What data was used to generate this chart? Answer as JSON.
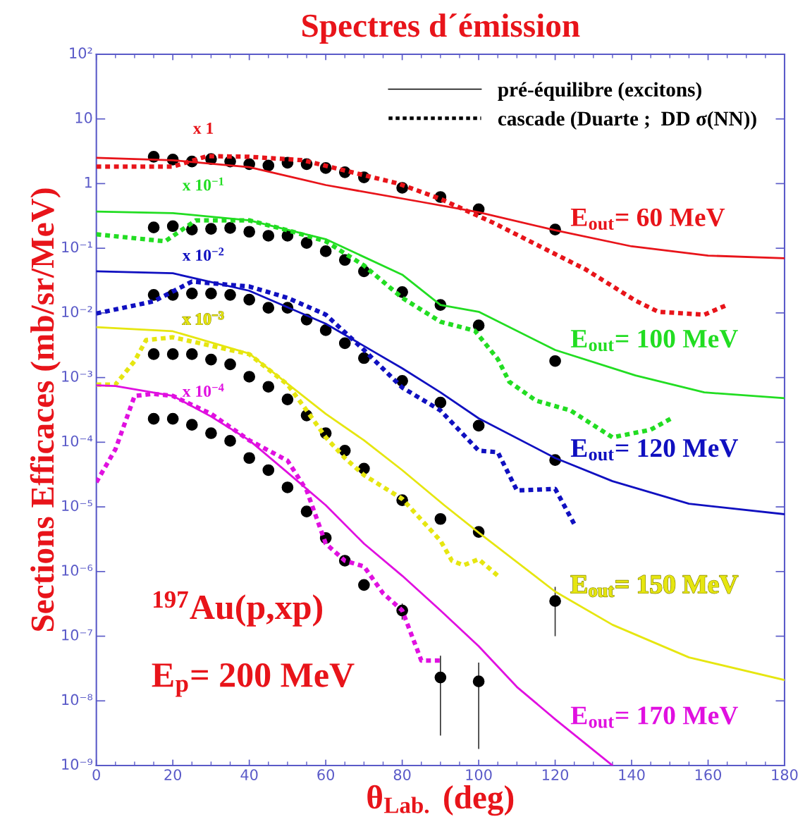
{
  "chart_data": {
    "type": "line",
    "title": "Spectres d´émission",
    "xlabel": "θ$_{Lab.}$ (deg)",
    "ylabel": "Sections Efficaces (mb/sr/MeV)",
    "xlim": [
      0,
      180
    ],
    "xticks": [
      0,
      20,
      40,
      60,
      80,
      100,
      120,
      140,
      160,
      180
    ],
    "ylim": [
      1e-09,
      100
    ],
    "yticks": [
      {
        "value": 100,
        "label": "10²"
      },
      10,
      1,
      {
        "value": 0.1,
        "label": "10⁻¹"
      },
      {
        "value": 0.01,
        "label": "10⁻²"
      },
      {
        "value": 0.001,
        "label": "10⁻³"
      },
      {
        "value": 0.0001,
        "label": "10⁻⁴"
      },
      {
        "value": 1e-05,
        "label": "10⁻⁵"
      },
      {
        "value": 1e-06,
        "label": "10⁻⁶"
      },
      {
        "value": 1e-07,
        "label": "10⁻⁷"
      },
      {
        "value": 1e-08,
        "label": "10⁻⁸"
      },
      {
        "value": 1e-09,
        "label": "10⁻⁹"
      }
    ],
    "log": "y",
    "grid": false,
    "legend": "right",
    "series": [
      {
        "name": "E$_{out}$= 60 MeV",
        "color": "#e8141a",
        "line_style": "solid",
        "x": [
          0,
          20,
          40,
          60,
          85,
          100,
          120,
          140,
          160,
          180
        ],
        "values": [
          2.5,
          2.3,
          1.8,
          0.95,
          0.52,
          0.36,
          0.19,
          0.107,
          0.077,
          0.07
        ]
      },
      {
        "color": "#e8141a",
        "line_style": "dashed",
        "x": [
          0,
          20,
          29,
          40,
          54,
          79,
          90,
          104,
          116,
          128,
          141,
          147,
          159,
          165
        ],
        "values": [
          1.83,
          1.83,
          2.66,
          2.6,
          2.3,
          1.0,
          0.58,
          0.245,
          0.107,
          0.047,
          0.0155,
          0.0104,
          0.0094,
          0.0133
        ]
      },
      {
        "type": "scatter",
        "color": "#000000",
        "marker": "circle",
        "x": [
          15,
          20,
          25,
          30,
          35,
          40,
          45,
          50,
          55,
          60,
          65,
          70,
          80,
          90,
          100,
          120
        ],
        "values": [
          2.6,
          2.35,
          2.2,
          2.4,
          2.2,
          2.0,
          1.9,
          2.1,
          2.0,
          1.74,
          1.5,
          1.25,
          0.86,
          0.62,
          0.4,
          0.195
        ]
      },
      {
        "name": "E$_{out}$= 100 MeV",
        "color": "#22dd22",
        "line_style": "solid",
        "x": [
          0,
          20,
          40,
          60,
          80,
          90,
          100,
          120,
          141,
          159,
          180
        ],
        "values": [
          0.37,
          0.35,
          0.27,
          0.138,
          0.039,
          0.0133,
          0.0104,
          0.00267,
          0.00108,
          0.00059,
          0.00048
        ]
      },
      {
        "color": "#22dd22",
        "line_style": "dashed",
        "x": [
          0,
          18,
          26,
          40,
          50,
          60,
          70,
          80,
          90,
          99,
          105,
          108,
          115,
          124,
          135,
          145,
          151
        ],
        "values": [
          0.164,
          0.128,
          0.27,
          0.27,
          0.19,
          0.128,
          0.054,
          0.0171,
          0.0073,
          0.0053,
          0.00193,
          0.00086,
          0.00044,
          0.00031,
          0.000119,
          0.000156,
          0.000245
        ]
      },
      {
        "type": "scatter",
        "color": "#000000",
        "marker": "circle",
        "x": [
          15,
          20,
          25,
          30,
          35,
          40,
          45,
          50,
          55,
          60,
          65,
          70,
          80,
          90,
          100,
          120
        ],
        "values": [
          0.21,
          0.22,
          0.195,
          0.2,
          0.206,
          0.18,
          0.156,
          0.156,
          0.121,
          0.09,
          0.066,
          0.044,
          0.021,
          0.0133,
          0.0064,
          0.0018
        ]
      },
      {
        "name": "E$_{out}$= 120 MeV",
        "color": "#1010c0",
        "line_style": "solid",
        "x": [
          0,
          20,
          40,
          60,
          80,
          90,
          100,
          120,
          135,
          155,
          180
        ],
        "values": [
          0.044,
          0.041,
          0.022,
          0.0068,
          0.00139,
          0.00059,
          0.000234,
          5.7e-05,
          2.5e-05,
          1.12e-05,
          7.7e-06
        ]
      },
      {
        "color": "#1010c0",
        "line_style": "dashed",
        "x": [
          0,
          15,
          25,
          40,
          50,
          60,
          70,
          80,
          90,
          100,
          105,
          110,
          120,
          125
        ],
        "values": [
          0.0098,
          0.0151,
          0.0305,
          0.0256,
          0.0171,
          0.0094,
          0.00267,
          0.0007,
          0.00031,
          7.4e-05,
          7e-05,
          1.8e-05,
          1.9e-05,
          5.4e-06
        ]
      },
      {
        "type": "scatter",
        "color": "#000000",
        "marker": "circle",
        "x": [
          15,
          20,
          25,
          30,
          35,
          40,
          45,
          50,
          55,
          60,
          65,
          70,
          80,
          90,
          100,
          120
        ],
        "values": [
          0.019,
          0.019,
          0.02,
          0.02,
          0.019,
          0.016,
          0.012,
          0.012,
          0.0079,
          0.0054,
          0.0034,
          0.002,
          0.00089,
          0.00041,
          0.00018,
          5.3e-05
        ]
      },
      {
        "name": "E$_{out}$= 150 MeV",
        "color": "#e6e610",
        "line_style": "solid",
        "x": [
          0,
          20,
          40,
          60,
          70,
          80,
          91,
          100,
          120,
          135,
          155,
          180
        ],
        "values": [
          0.006,
          0.0052,
          0.00235,
          0.000275,
          0.000107,
          3.7e-05,
          1.06e-05,
          4e-06,
          4.9e-07,
          1.5e-07,
          4.7e-08,
          2.1e-08
        ]
      },
      {
        "color": "#e6e610",
        "line_style": "dashed",
        "x": [
          0,
          5,
          10,
          13,
          20,
          40,
          50,
          55,
          60,
          65,
          70,
          80,
          90,
          93,
          96,
          100,
          105
        ],
        "values": [
          0.00078,
          0.00078,
          0.0018,
          0.0038,
          0.0042,
          0.0023,
          0.00078,
          0.00031,
          0.000119,
          5.7e-05,
          3.1e-05,
          1.33e-05,
          3e-06,
          1.47e-06,
          1.25e-06,
          1.55e-06,
          8.6e-07
        ]
      },
      {
        "type": "scatter",
        "color": "#000000",
        "marker": "circle",
        "x": [
          15,
          20,
          25,
          30,
          35,
          40,
          45,
          50,
          55,
          60,
          65,
          70,
          80,
          90,
          100,
          120
        ],
        "values": [
          0.0023,
          0.0023,
          0.0023,
          0.0019,
          0.0016,
          0.00103,
          0.00072,
          0.00046,
          0.00026,
          0.000138,
          7.4e-05,
          3.9e-05,
          1.27e-05,
          6.5e-06,
          4.1e-06,
          3.5e-07
        ],
        "errors": [
          null,
          null,
          null,
          null,
          null,
          null,
          null,
          null,
          null,
          null,
          null,
          null,
          null,
          null,
          null,
          [
            1e-07,
            5.8e-07
          ]
        ]
      },
      {
        "name": "E$_{out}$= 170 MeV",
        "color": "#e010e0",
        "line_style": "solid",
        "x": [
          0,
          5,
          20,
          30,
          40,
          50,
          60,
          70,
          80,
          90,
          100,
          110,
          120,
          135
        ],
        "values": [
          0.00076,
          0.00074,
          0.00052,
          0.00025,
          0.000107,
          3.4e-05,
          1.06e-05,
          2.7e-06,
          8.6e-07,
          2.5e-07,
          7e-08,
          1.64e-08,
          5.2e-09,
          1e-09
        ]
      },
      {
        "color": "#e010e0",
        "line_style": "dashed",
        "x": [
          0,
          5,
          10,
          15,
          20,
          30,
          40,
          50,
          55,
          60,
          65,
          70,
          75,
          80,
          85,
          90
        ],
        "values": [
          2.4e-05,
          7.8e-05,
          0.00052,
          0.00056,
          0.00052,
          0.000275,
          0.000107,
          5.2e-05,
          1.8e-05,
          2.7e-06,
          1.47e-06,
          1.2e-06,
          4.6e-07,
          2.5e-07,
          4.2e-08,
          4.2e-08
        ]
      },
      {
        "type": "scatter",
        "color": "#000000",
        "marker": "circle",
        "x": [
          15,
          20,
          25,
          30,
          35,
          40,
          45,
          50,
          55,
          60,
          65,
          70,
          80,
          90,
          100
        ],
        "values": [
          0.00023,
          0.00023,
          0.000186,
          0.000138,
          0.000105,
          5.7e-05,
          3.7e-05,
          2e-05,
          8.5e-06,
          3.3e-06,
          1.47e-06,
          6.2e-07,
          2.5e-07,
          2.3e-08,
          2e-08
        ],
        "errors": [
          null,
          null,
          null,
          null,
          null,
          null,
          null,
          null,
          null,
          null,
          null,
          null,
          [
            1.8e-07,
            3.2e-07
          ],
          [
            2.9e-09,
            5e-08
          ],
          [
            1.8e-09,
            3.9e-08
          ]
        ]
      }
    ],
    "annotations": [
      "pré-équilibre (excitons)",
      "cascade (Duarte ;  DD σ(NN))",
      "x 1",
      "x 10$^{−1}$",
      "x 10$^{−2}$",
      "x 10$^{−3}$",
      "x 10$^{−4}$",
      "$^{197}$Au(p,xp)",
      "E$_{p}$= 200 MeV"
    ]
  }
}
